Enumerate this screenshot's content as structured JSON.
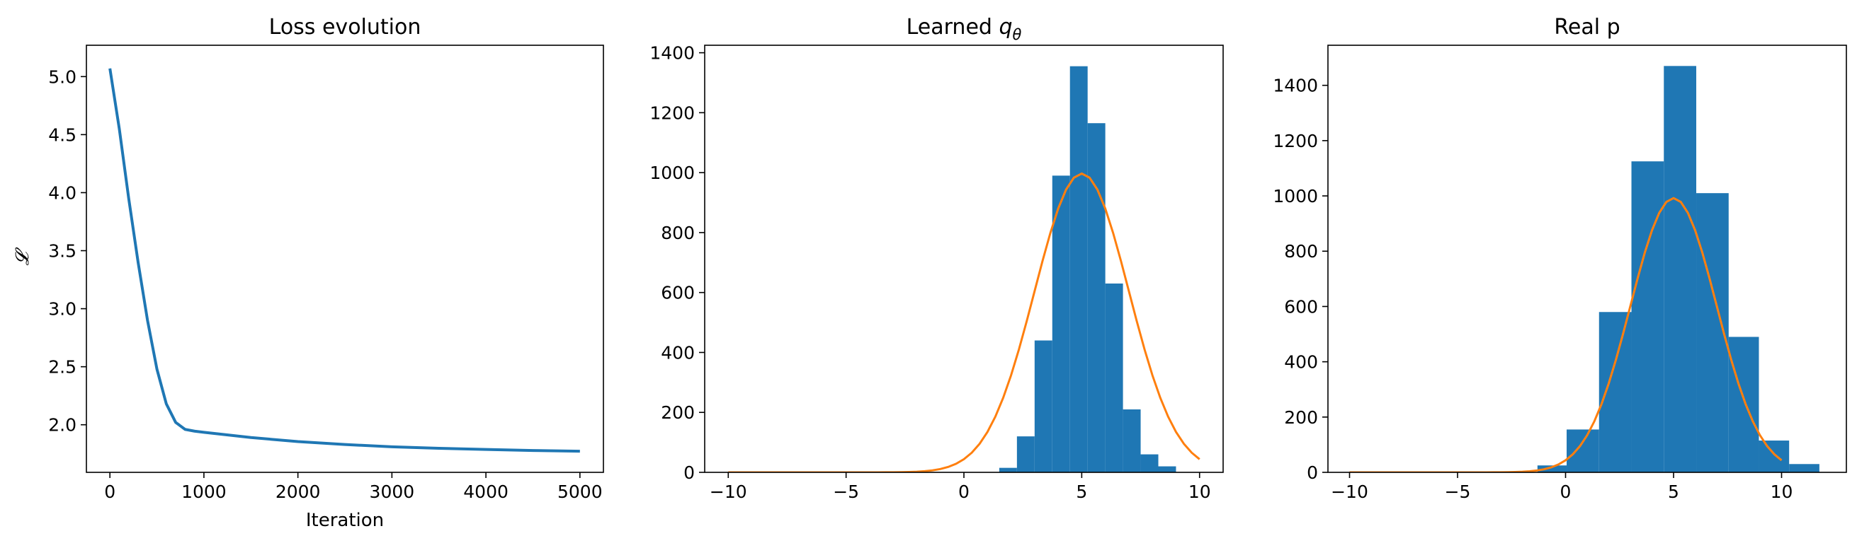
{
  "chart_data": [
    {
      "type": "line",
      "title": "Loss evolution",
      "xlabel": "Iteration",
      "ylabel": "𝓛",
      "xlim": [
        -250,
        5250
      ],
      "ylim": [
        1.59,
        5.27
      ],
      "xticks": [
        0,
        1000,
        2000,
        3000,
        4000,
        5000
      ],
      "yticks": [
        2.0,
        2.5,
        3.0,
        3.5,
        4.0,
        4.5,
        5.0
      ],
      "xtick_labels": [
        "0",
        "1000",
        "2000",
        "3000",
        "4000",
        "5000"
      ],
      "ytick_labels": [
        "2.0",
        "2.5",
        "3.0",
        "3.5",
        "4.0",
        "4.5",
        "5.0"
      ],
      "series": [
        {
          "color": "#1f77b4",
          "x": [
            0,
            100,
            200,
            300,
            400,
            500,
            600,
            700,
            800,
            900,
            1000,
            1500,
            2000,
            2500,
            3000,
            3500,
            4000,
            4500,
            5000
          ],
          "y": [
            5.07,
            4.55,
            3.95,
            3.4,
            2.9,
            2.48,
            2.18,
            2.02,
            1.96,
            1.945,
            1.935,
            1.89,
            1.855,
            1.83,
            1.81,
            1.797,
            1.787,
            1.778,
            1.772
          ]
        }
      ]
    },
    {
      "type": "bar",
      "title": "Learned ",
      "title_math": "q",
      "title_sub": "θ",
      "xlim": [
        -11,
        11
      ],
      "ylim": [
        0,
        1425
      ],
      "xticks": [
        -10,
        -5,
        0,
        5,
        10
      ],
      "yticks": [
        0,
        200,
        400,
        600,
        800,
        1000,
        1200,
        1400
      ],
      "xtick_labels": [
        "−10",
        "−5",
        "0",
        "5",
        "10"
      ],
      "ytick_labels": [
        "0",
        "200",
        "400",
        "600",
        "800",
        "1000",
        "1200",
        "1400"
      ],
      "bars": {
        "color": "#1f77b4",
        "edges": [
          1.5,
          2.25,
          3.0,
          3.75,
          4.5,
          5.25,
          6.0,
          6.75,
          7.5,
          8.25,
          9.0
        ],
        "values": [
          15,
          120,
          440,
          990,
          1355,
          1165,
          630,
          210,
          60,
          20
        ]
      },
      "curve": {
        "color": "#ff7f0e",
        "mu": 5,
        "sigma": 2,
        "peak": 997,
        "x_range": [
          -10,
          10
        ]
      }
    },
    {
      "type": "bar",
      "title": "Real p",
      "xlim": [
        -11,
        13
      ],
      "ylim": [
        0,
        1545
      ],
      "xticks": [
        -10,
        -5,
        0,
        5,
        10
      ],
      "yticks": [
        0,
        200,
        400,
        600,
        800,
        1000,
        1200,
        1400
      ],
      "xtick_labels": [
        "−10",
        "−5",
        "0",
        "5",
        "10"
      ],
      "ytick_labels": [
        "0",
        "200",
        "400",
        "600",
        "800",
        "1000",
        "1200",
        "1400"
      ],
      "bars": {
        "color": "#1f77b4",
        "edges": [
          -1.3,
          0.05,
          1.55,
          3.05,
          4.55,
          6.05,
          7.55,
          8.95,
          10.35,
          11.75
        ],
        "values": [
          25,
          155,
          580,
          1125,
          1470,
          1010,
          490,
          115,
          30
        ]
      },
      "curve": {
        "color": "#ff7f0e",
        "mu": 5,
        "sigma": 2,
        "peak": 992,
        "x_range": [
          -10,
          10
        ]
      }
    }
  ]
}
